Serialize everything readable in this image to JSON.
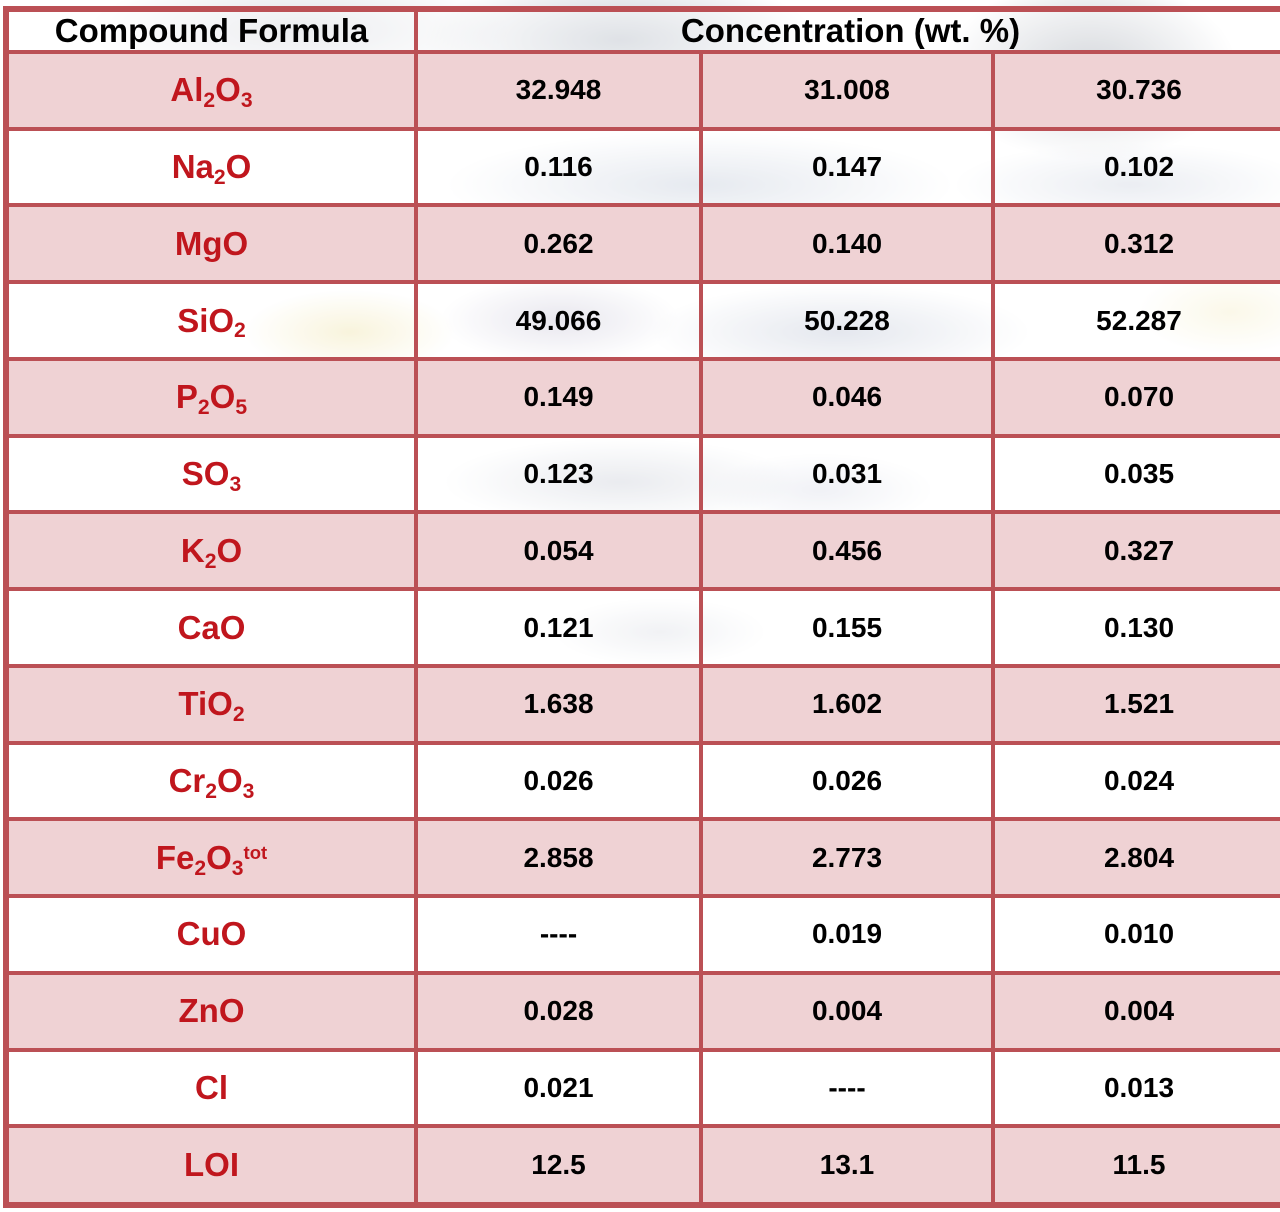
{
  "header": {
    "compound_formula": "Compound Formula",
    "concentration": "Concentration (wt. %)"
  },
  "colors": {
    "border": "#bb5055",
    "pink_fill": "#efd2d4",
    "formula_red": "#c0161d",
    "value_black": "#000000"
  },
  "rows": [
    {
      "formula": "Al_2O_3",
      "values": [
        "32.948",
        "31.008",
        "30.736"
      ]
    },
    {
      "formula": "Na_2O",
      "values": [
        "0.116",
        "0.147",
        "0.102"
      ]
    },
    {
      "formula": "MgO",
      "values": [
        "0.262",
        "0.140",
        "0.312"
      ]
    },
    {
      "formula": "SiO_2",
      "values": [
        "49.066",
        "50.228",
        "52.287"
      ]
    },
    {
      "formula": "P_2O_5",
      "values": [
        "0.149",
        "0.046",
        "0.070"
      ]
    },
    {
      "formula": "SO_3",
      "values": [
        "0.123",
        "0.031",
        "0.035"
      ]
    },
    {
      "formula": "K_2O",
      "values": [
        "0.054",
        "0.456",
        "0.327"
      ]
    },
    {
      "formula": "CaO",
      "values": [
        "0.121",
        "0.155",
        "0.130"
      ]
    },
    {
      "formula": "TiO_2",
      "values": [
        "1.638",
        "1.602",
        "1.521"
      ]
    },
    {
      "formula": "Cr_2O_3",
      "values": [
        "0.026",
        "0.026",
        "0.024"
      ]
    },
    {
      "formula": "Fe_2O_3^tot",
      "values": [
        "2.858",
        "2.773",
        "2.804"
      ]
    },
    {
      "formula": "CuO",
      "values": [
        "----",
        "0.019",
        "0.010"
      ]
    },
    {
      "formula": "ZnO",
      "values": [
        "0.028",
        "0.004",
        "0.004"
      ]
    },
    {
      "formula": "Cl",
      "values": [
        "0.021",
        "----",
        "0.013"
      ]
    },
    {
      "formula": "LOI",
      "values": [
        "12.5",
        "13.1",
        "11.5"
      ]
    }
  ]
}
